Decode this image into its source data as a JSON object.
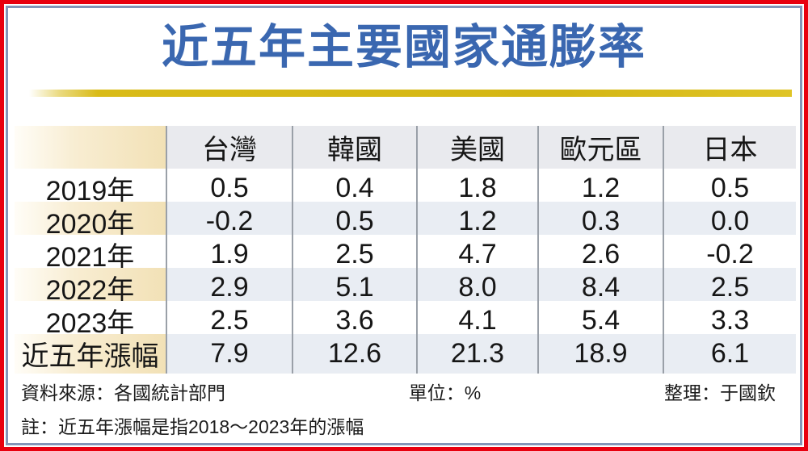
{
  "title": "近五年主要國家通膨率",
  "table": {
    "columns": [
      "",
      "台灣",
      "韓國",
      "美國",
      "歐元區",
      "日本"
    ],
    "rows": [
      {
        "label": "2019年",
        "values": [
          "0.5",
          "0.4",
          "1.8",
          "1.2",
          "0.5"
        ]
      },
      {
        "label": "2020年",
        "values": [
          "-0.2",
          "0.5",
          "1.2",
          "0.3",
          "0.0"
        ]
      },
      {
        "label": "2021年",
        "values": [
          "1.9",
          "2.5",
          "4.7",
          "2.6",
          "-0.2"
        ]
      },
      {
        "label": "2022年",
        "values": [
          "2.9",
          "5.1",
          "8.0",
          "8.4",
          "2.5"
        ]
      },
      {
        "label": "2023年",
        "values": [
          "2.5",
          "3.6",
          "4.1",
          "5.4",
          "3.3"
        ]
      },
      {
        "label": "近五年漲幅",
        "values": [
          "7.9",
          "12.6",
          "21.3",
          "18.9",
          "6.1"
        ]
      }
    ]
  },
  "footer": {
    "source": "資料來源：各國統計部門",
    "unit": "單位：%",
    "editor": "整理：于國欽",
    "note": "註：近五年漲幅是指2018～2023年的漲幅"
  },
  "colors": {
    "outer_border_red": "#e8000f",
    "inner_border_slate": "#8395b8",
    "title_blue": "#3a67b0",
    "gold_bar": "#d9bb17",
    "label_column_cream": "#f2e1b6",
    "striped_row_gray": "#e9edf3",
    "grid_line_gray": "#9aa0a8"
  },
  "chart_data": {
    "type": "table",
    "title": "近五年主要國家通膨率",
    "unit": "%",
    "row_labels": [
      "2019年",
      "2020年",
      "2021年",
      "2022年",
      "2023年",
      "近五年漲幅"
    ],
    "series": [
      {
        "name": "台灣",
        "values": [
          0.5,
          -0.2,
          1.9,
          2.9,
          2.5,
          7.9
        ]
      },
      {
        "name": "韓國",
        "values": [
          0.4,
          0.5,
          2.5,
          5.1,
          3.6,
          12.6
        ]
      },
      {
        "name": "美國",
        "values": [
          1.8,
          1.2,
          4.7,
          8.0,
          4.1,
          21.3
        ]
      },
      {
        "name": "歐元區",
        "values": [
          1.2,
          0.3,
          2.6,
          8.4,
          5.4,
          18.9
        ]
      },
      {
        "name": "日本",
        "values": [
          0.5,
          0.0,
          -0.2,
          2.5,
          3.3,
          6.1
        ]
      }
    ],
    "source_note": "資料來源：各國統計部門",
    "editor_note": "整理：于國欽",
    "footnote": "註：近五年漲幅是指2018～2023年的漲幅"
  }
}
